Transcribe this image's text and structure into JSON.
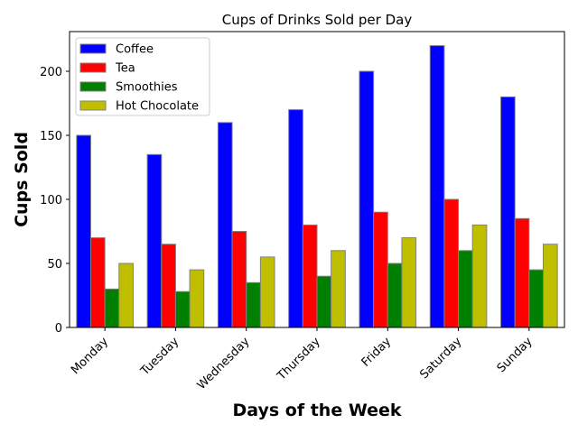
{
  "chart_data": {
    "type": "bar",
    "title": "Cups of Drinks Sold per Day",
    "xlabel": "Days of the Week",
    "ylabel": "Cups Sold",
    "categories": [
      "Monday",
      "Tuesday",
      "Wednesday",
      "Thursday",
      "Friday",
      "Saturday",
      "Sunday"
    ],
    "series": [
      {
        "name": "Coffee",
        "color": "#0000ff",
        "values": [
          150,
          135,
          160,
          170,
          200,
          220,
          180
        ]
      },
      {
        "name": "Tea",
        "color": "#ff0000",
        "values": [
          70,
          65,
          75,
          80,
          90,
          100,
          85
        ]
      },
      {
        "name": "Smoothies",
        "color": "#008000",
        "values": [
          30,
          28,
          35,
          40,
          50,
          60,
          45
        ]
      },
      {
        "name": "Hot Chocolate",
        "color": "#bfbf00",
        "values": [
          50,
          45,
          55,
          60,
          70,
          80,
          65
        ]
      }
    ],
    "ylim": [
      0,
      231
    ],
    "yticks": [
      0,
      50,
      100,
      150,
      200
    ],
    "bar_edge_color": "#808080",
    "legend_position": "top-left",
    "grid": false
  }
}
